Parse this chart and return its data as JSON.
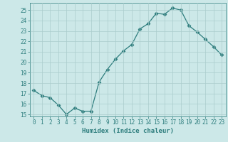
{
  "x": [
    0,
    1,
    2,
    3,
    4,
    5,
    6,
    7,
    8,
    9,
    10,
    11,
    12,
    13,
    14,
    15,
    16,
    17,
    18,
    19,
    20,
    21,
    22,
    23
  ],
  "y": [
    17.3,
    16.8,
    16.6,
    15.9,
    15.0,
    15.6,
    15.3,
    15.3,
    18.1,
    19.3,
    20.3,
    21.1,
    21.7,
    23.2,
    23.7,
    24.7,
    24.6,
    25.2,
    25.0,
    23.5,
    22.9,
    22.2,
    21.5,
    20.7
  ],
  "line_color": "#2d7d7d",
  "marker": "D",
  "marker_size": 2.5,
  "bg_color": "#cce8e8",
  "grid_color": "#aacccc",
  "xlabel": "Humidex (Indice chaleur)",
  "xlim": [
    -0.5,
    23.5
  ],
  "ylim": [
    14.8,
    25.7
  ],
  "yticks": [
    15,
    16,
    17,
    18,
    19,
    20,
    21,
    22,
    23,
    24,
    25
  ],
  "xticks": [
    0,
    1,
    2,
    3,
    4,
    5,
    6,
    7,
    8,
    9,
    10,
    11,
    12,
    13,
    14,
    15,
    16,
    17,
    18,
    19,
    20,
    21,
    22,
    23
  ],
  "tick_color": "#2d7d7d",
  "label_color": "#2d7d7d",
  "tick_fontsize": 5.5,
  "xlabel_fontsize": 6.5,
  "linewidth": 0.9
}
